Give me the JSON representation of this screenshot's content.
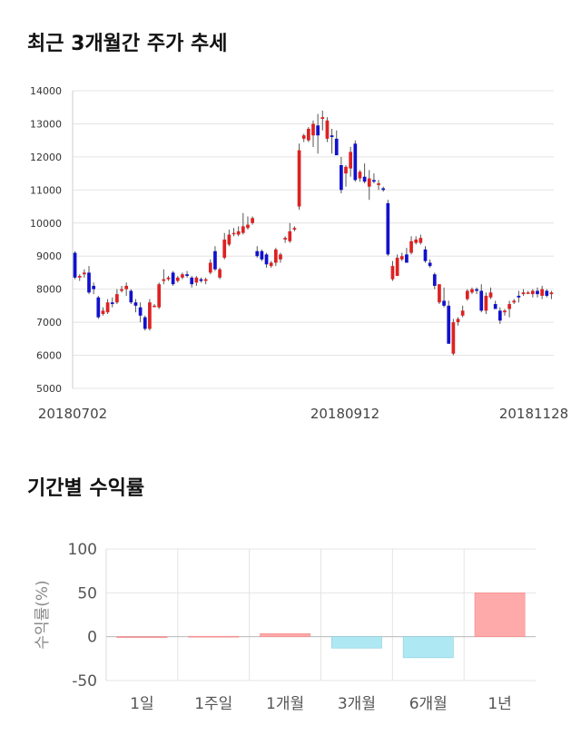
{
  "section1_title": "최근 3개월간 주가 추세",
  "section2_title": "기간별 수익률",
  "colors": {
    "up": "#dd2222",
    "down": "#1111cc",
    "wick": "#555555",
    "pos_bar": "#ffaaaa",
    "neg_bar": "#aee8f3"
  },
  "chart_data": [
    {
      "type": "candlestick",
      "title": "최근 3개월간 주가 추세",
      "ylim": [
        5000,
        14000
      ],
      "yticks": [
        5000,
        6000,
        7000,
        8000,
        9000,
        10000,
        11000,
        12000,
        13000,
        14000
      ],
      "x_tick_labels": [
        "20180702",
        "20180912",
        "20181128"
      ],
      "grid": true,
      "candles": [
        [
          9100,
          9150,
          8300,
          8350
        ],
        [
          8350,
          8450,
          8250,
          8400
        ],
        [
          8450,
          8600,
          8350,
          8500
        ],
        [
          8500,
          8700,
          7850,
          7900
        ],
        [
          8100,
          8200,
          7850,
          8000
        ],
        [
          7750,
          7800,
          7100,
          7150
        ],
        [
          7250,
          7450,
          7200,
          7350
        ],
        [
          7300,
          7700,
          7250,
          7600
        ],
        [
          7600,
          7750,
          7450,
          7550
        ],
        [
          7600,
          8000,
          7550,
          7850
        ],
        [
          7950,
          8100,
          7900,
          8000
        ],
        [
          8000,
          8200,
          7800,
          8100
        ],
        [
          7950,
          8000,
          7550,
          7600
        ],
        [
          7600,
          7700,
          7300,
          7500
        ],
        [
          7450,
          7600,
          7000,
          7200
        ],
        [
          7150,
          7200,
          6750,
          6800
        ],
        [
          6800,
          7700,
          6750,
          7600
        ],
        [
          7500,
          7550,
          7450,
          7500
        ],
        [
          7450,
          8200,
          7400,
          8150
        ],
        [
          8250,
          8600,
          8150,
          8300
        ],
        [
          8300,
          8400,
          8250,
          8350
        ],
        [
          8500,
          8550,
          8100,
          8150
        ],
        [
          8250,
          8400,
          8200,
          8350
        ],
        [
          8350,
          8500,
          8300,
          8450
        ],
        [
          8450,
          8550,
          8350,
          8400
        ],
        [
          8350,
          8400,
          8050,
          8150
        ],
        [
          8200,
          8400,
          8100,
          8350
        ],
        [
          8300,
          8350,
          8200,
          8250
        ],
        [
          8250,
          8350,
          8150,
          8300
        ],
        [
          8500,
          8900,
          8450,
          8800
        ],
        [
          9150,
          9300,
          8550,
          8600
        ],
        [
          8350,
          8650,
          8300,
          8600
        ],
        [
          8950,
          9700,
          8900,
          9500
        ],
        [
          9350,
          9800,
          9300,
          9650
        ],
        [
          9700,
          9850,
          9600,
          9700
        ],
        [
          9650,
          9900,
          9600,
          9750
        ],
        [
          9700,
          10300,
          9650,
          9900
        ],
        [
          9850,
          10200,
          9800,
          9950
        ],
        [
          10000,
          10200,
          9950,
          10150
        ],
        [
          9150,
          9300,
          8950,
          9000
        ],
        [
          9150,
          9200,
          8850,
          8900
        ],
        [
          9050,
          9100,
          8650,
          8750
        ],
        [
          8700,
          8850,
          8650,
          8800
        ],
        [
          8800,
          9250,
          8700,
          9200
        ],
        [
          8900,
          9100,
          8800,
          9050
        ],
        [
          9500,
          9600,
          9400,
          9550
        ],
        [
          9450,
          10000,
          9400,
          9750
        ],
        [
          9800,
          9900,
          9750,
          9850
        ],
        [
          10500,
          12400,
          10400,
          12200
        ],
        [
          12550,
          12700,
          12450,
          12650
        ],
        [
          12500,
          12900,
          12450,
          12850
        ],
        [
          12650,
          13100,
          12300,
          13000
        ],
        [
          12950,
          13300,
          12100,
          12650
        ],
        [
          13150,
          13400,
          12800,
          13200
        ],
        [
          12550,
          13200,
          12450,
          13100
        ],
        [
          12650,
          12850,
          12100,
          12600
        ],
        [
          12550,
          12800,
          12050,
          12050
        ],
        [
          11750,
          12000,
          10900,
          11000
        ],
        [
          11500,
          11750,
          11100,
          11700
        ],
        [
          11650,
          12300,
          11400,
          12150
        ],
        [
          12400,
          12500,
          11250,
          11300
        ],
        [
          11350,
          11600,
          11250,
          11550
        ],
        [
          11400,
          11800,
          11200,
          11250
        ],
        [
          11100,
          11600,
          10700,
          11350
        ],
        [
          11300,
          11500,
          11200,
          11250
        ],
        [
          11150,
          11300,
          11000,
          11200
        ],
        [
          11050,
          11100,
          10950,
          11000
        ],
        [
          10600,
          10700,
          9000,
          9050
        ],
        [
          8300,
          8850,
          8250,
          8700
        ],
        [
          8400,
          9050,
          8400,
          8950
        ],
        [
          8900,
          9100,
          8850,
          9000
        ],
        [
          9050,
          9250,
          8800,
          8800
        ],
        [
          9100,
          9600,
          9050,
          9450
        ],
        [
          9400,
          9600,
          9350,
          9500
        ],
        [
          9400,
          9650,
          9350,
          9550
        ],
        [
          9200,
          9300,
          8800,
          8850
        ],
        [
          8800,
          8900,
          8650,
          8700
        ],
        [
          8450,
          8500,
          8000,
          8100
        ],
        [
          7600,
          8150,
          7550,
          8150
        ],
        [
          7650,
          8050,
          7450,
          7500
        ],
        [
          7500,
          7650,
          6350,
          6350
        ],
        [
          6050,
          7100,
          6000,
          7000
        ],
        [
          7000,
          7150,
          6900,
          7100
        ],
        [
          7200,
          7500,
          7150,
          7350
        ],
        [
          7700,
          8000,
          7650,
          7950
        ],
        [
          7900,
          8050,
          7850,
          8000
        ],
        [
          8000,
          8050,
          7850,
          7950
        ],
        [
          7950,
          8150,
          7300,
          7350
        ],
        [
          7350,
          7900,
          7250,
          7800
        ],
        [
          7750,
          8050,
          7700,
          7900
        ],
        [
          7550,
          7650,
          7400,
          7400
        ],
        [
          7350,
          7450,
          6950,
          7050
        ],
        [
          7300,
          7400,
          7200,
          7350
        ],
        [
          7400,
          7650,
          7150,
          7550
        ],
        [
          7600,
          7700,
          7550,
          7650
        ],
        [
          7800,
          7950,
          7600,
          7750
        ],
        [
          7850,
          8000,
          7800,
          7900
        ],
        [
          7900,
          7950,
          7850,
          7900
        ],
        [
          7850,
          8000,
          7750,
          7950
        ],
        [
          7950,
          8050,
          7750,
          7850
        ],
        [
          7800,
          8100,
          7700,
          8000
        ],
        [
          7950,
          8000,
          7750,
          7800
        ],
        [
          7850,
          7950,
          7700,
          7900
        ]
      ]
    },
    {
      "type": "bar",
      "title": "기간별 수익률",
      "ylabel": "수익률(%)",
      "categories": [
        "1일",
        "1주일",
        "1개월",
        "3개월",
        "6개월",
        "1년"
      ],
      "values": [
        0,
        0.5,
        3.5,
        -13,
        -24,
        50
      ],
      "ylim": [
        -50,
        100
      ],
      "yticks": [
        100,
        50,
        0,
        -50
      ],
      "grid": true
    }
  ]
}
